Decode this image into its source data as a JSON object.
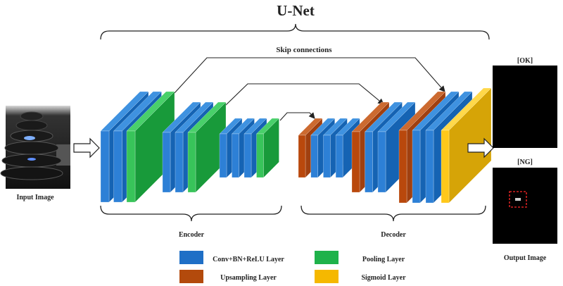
{
  "title": "U-Net",
  "skip_label": "Skip connections",
  "input": {
    "label": "Input Image"
  },
  "output": {
    "label": "Output Image",
    "ok_label": "[OK]",
    "ng_label": "[NG]"
  },
  "sections": {
    "encoder": "Encoder",
    "decoder": "Decoder"
  },
  "blocks": [
    {
      "part": "encoder",
      "layers": [
        "conv",
        "conv",
        "pool"
      ]
    },
    {
      "part": "encoder",
      "layers": [
        "conv",
        "conv",
        "pool"
      ]
    },
    {
      "part": "encoder",
      "layers": [
        "conv",
        "conv",
        "conv",
        "pool"
      ]
    },
    {
      "part": "decoder",
      "layers": [
        "up",
        "conv",
        "conv",
        "conv"
      ]
    },
    {
      "part": "decoder",
      "layers": [
        "up",
        "conv",
        "conv"
      ]
    },
    {
      "part": "decoder",
      "layers": [
        "up",
        "conv",
        "conv",
        "sigmoid"
      ]
    }
  ],
  "legend": [
    {
      "key": "conv",
      "label": "Conv+BN+ReLU Layer",
      "color": "#1f6fc6"
    },
    {
      "key": "pool",
      "label": "Pooling Layer",
      "color": "#1fb24a"
    },
    {
      "key": "up",
      "label": "Upsampling Layer",
      "color": "#b34a0c"
    },
    {
      "key": "sigmoid",
      "label": "Sigmoid Layer",
      "color": "#f5b800"
    }
  ],
  "colors": {
    "conv": {
      "front": "#2d80d6",
      "side": "#1563b3",
      "top": "#3f92e0"
    },
    "pool": {
      "front": "#38c45a",
      "side": "#189a3a",
      "top": "#49d06a"
    },
    "up": {
      "front": "#b9480c",
      "side": "#a04010",
      "top": "#cc6a30"
    },
    "sigmoid": {
      "front": "#ffc81a",
      "side": "#d6a407",
      "top": "#ffd84a"
    },
    "ng_box": "#d42020"
  }
}
